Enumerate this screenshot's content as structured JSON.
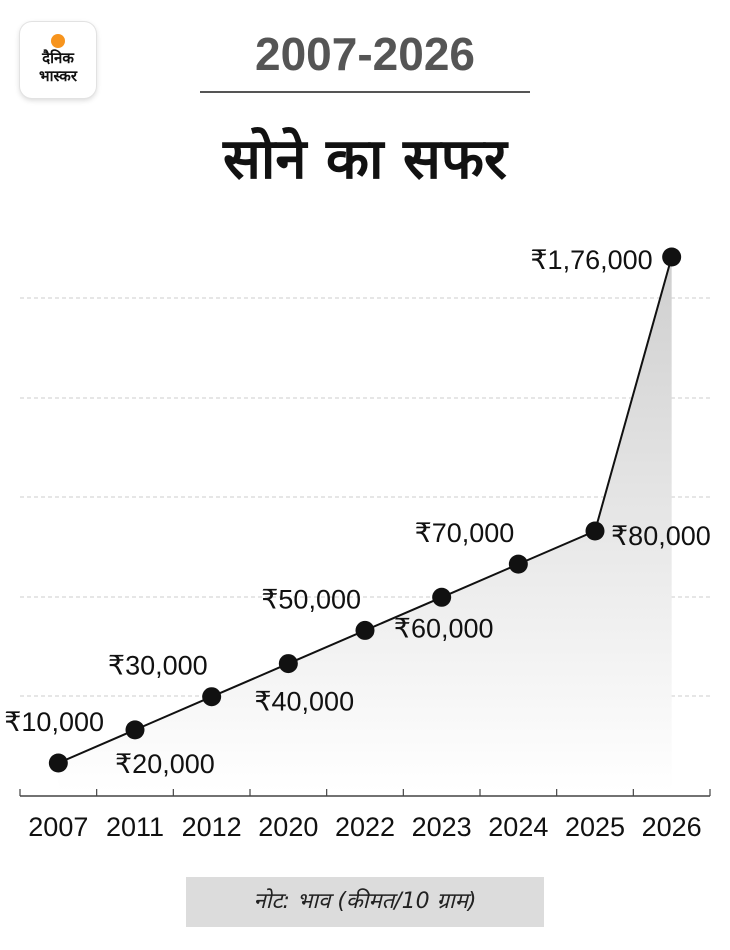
{
  "logo": {
    "line1": "दैनिक",
    "line2": "भास्कर",
    "accent_color": "#f7941d"
  },
  "header": {
    "period": "2007-2026",
    "title": "सोने का सफर"
  },
  "note": "नोट: भाव (कीमत/10 ग्राम)",
  "chart_data": {
    "type": "line",
    "title": "सोने का सफर",
    "xlabel": "",
    "ylabel": "",
    "categories": [
      "2007",
      "2011",
      "2012",
      "2020",
      "2022",
      "2023",
      "2024",
      "2025",
      "2026"
    ],
    "series": [
      {
        "values": [
          10000,
          20000,
          30000,
          40000,
          50000,
          60000,
          70000,
          80000,
          176000
        ]
      }
    ],
    "data_labels": [
      "₹10,000",
      "₹20,000",
      "₹30,000",
      "₹40,000",
      "₹50,000",
      "₹60,000",
      "₹70,000",
      "₹80,000",
      "₹1,76,000"
    ],
    "label_placement": [
      "above-left",
      "below-right",
      "above-left",
      "below-left",
      "above-left",
      "below",
      "above-left",
      "right",
      "left"
    ],
    "ylim": [
      0,
      180000
    ],
    "grid": true,
    "area_fill": true,
    "line_color": "#111111",
    "marker_color": "#111111",
    "grid_color": "#cccccc",
    "area_color": "#d9d9d9"
  }
}
